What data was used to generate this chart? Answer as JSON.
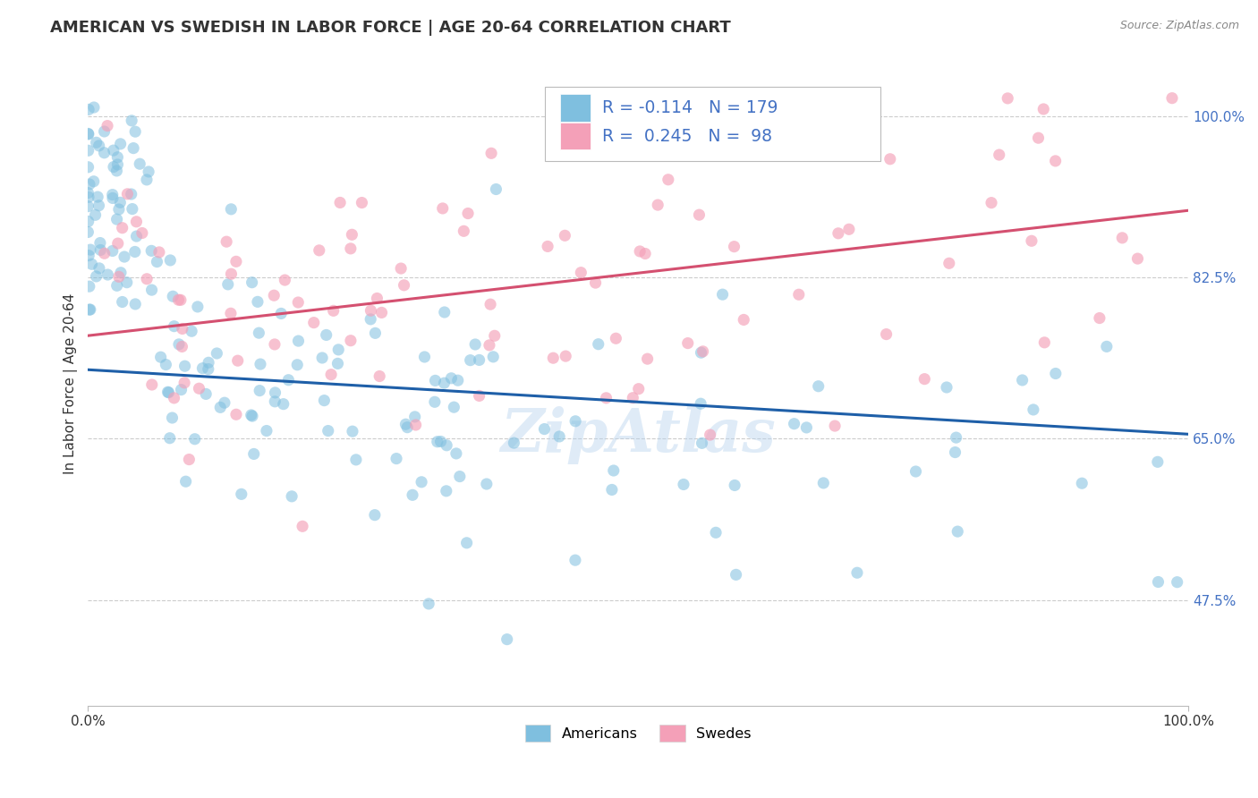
{
  "title": "AMERICAN VS SWEDISH IN LABOR FORCE | AGE 20-64 CORRELATION CHART",
  "source": "Source: ZipAtlas.com",
  "ylabel": "In Labor Force | Age 20-64",
  "xlim": [
    0.0,
    1.0
  ],
  "ylim": [
    0.36,
    1.06
  ],
  "yticks": [
    0.475,
    0.65,
    0.825,
    1.0
  ],
  "ytick_labels": [
    "47.5%",
    "65.0%",
    "82.5%",
    "100.0%"
  ],
  "american_color": "#7fbfdf",
  "swedish_color": "#f4a0b8",
  "american_R": -0.114,
  "american_N": 179,
  "swedish_R": 0.245,
  "swedish_N": 98,
  "watermark": "ZipAtlas",
  "background_color": "#ffffff",
  "grid_color": "#cccccc",
  "title_fontsize": 13,
  "axis_label_fontsize": 11,
  "tick_fontsize": 11,
  "american_line_color": "#1e5fa8",
  "swedish_line_color": "#d45070",
  "american_line_start_y": 0.725,
  "american_line_end_y": 0.655,
  "swedish_line_start_y": 0.762,
  "swedish_line_end_y": 0.898,
  "tick_color": "#4472c4"
}
